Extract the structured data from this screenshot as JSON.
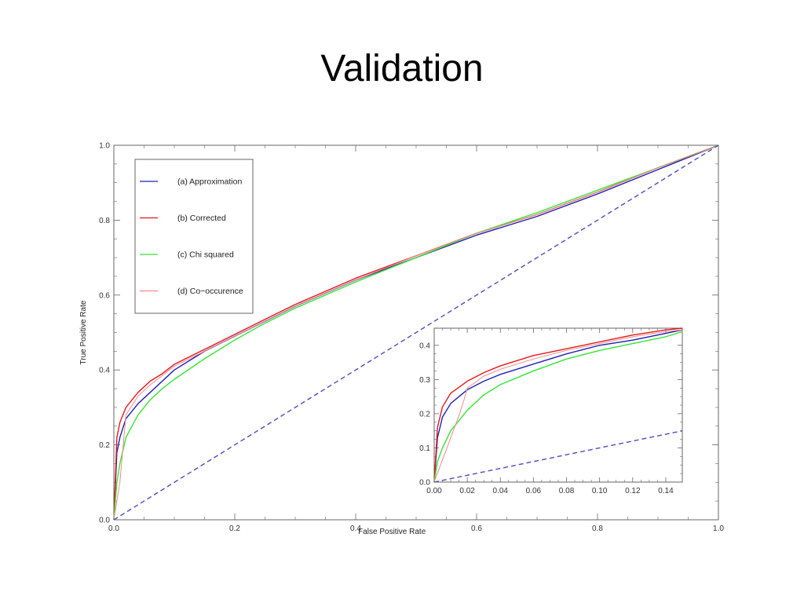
{
  "slide": {
    "title": "Validation"
  },
  "colors": {
    "approximation": "#1f1fb4",
    "corrected": "#e41a1c",
    "chi_squared": "#33e633",
    "co_occurence": "#f08c8c",
    "diagonal": "#4d4dbf",
    "frame": "#666666"
  },
  "chart_data": [
    {
      "type": "line",
      "title": "",
      "xlabel": "False Positive Rate",
      "ylabel": "True Positive Rate",
      "xlim": [
        0,
        1
      ],
      "ylim": [
        0,
        1
      ],
      "xticks": [
        0.0,
        0.2,
        0.4,
        0.6,
        0.8,
        1.0
      ],
      "yticks": [
        0.0,
        0.2,
        0.4,
        0.6,
        0.8,
        1.0
      ],
      "xtick_labels": [
        "0.0",
        "0.2",
        "0.4",
        "0.6",
        "0.8",
        "1.0"
      ],
      "ytick_labels": [
        "0.0",
        "0.2",
        "0.4",
        "0.6",
        "0.8",
        "1.0"
      ],
      "grid": false,
      "legend_position": "top-left",
      "series": [
        {
          "name": "(a) Approximation",
          "color_key": "approximation",
          "x": [
            0,
            0.005,
            0.01,
            0.02,
            0.04,
            0.06,
            0.08,
            0.1,
            0.15,
            0.2,
            0.25,
            0.3,
            0.4,
            0.5,
            0.6,
            0.7,
            0.8,
            0.9,
            1.0
          ],
          "y": [
            0,
            0.18,
            0.22,
            0.27,
            0.31,
            0.34,
            0.37,
            0.4,
            0.45,
            0.49,
            0.53,
            0.57,
            0.64,
            0.7,
            0.76,
            0.81,
            0.87,
            0.935,
            1.0
          ]
        },
        {
          "name": "(b) Corrected",
          "color_key": "corrected",
          "x": [
            0,
            0.005,
            0.01,
            0.02,
            0.04,
            0.06,
            0.08,
            0.1,
            0.15,
            0.2,
            0.25,
            0.3,
            0.4,
            0.5,
            0.6,
            0.7,
            0.8,
            0.9,
            1.0
          ],
          "y": [
            0,
            0.22,
            0.26,
            0.3,
            0.34,
            0.37,
            0.39,
            0.415,
            0.455,
            0.495,
            0.535,
            0.575,
            0.645,
            0.705,
            0.765,
            0.815,
            0.875,
            0.94,
            1.0
          ]
        },
        {
          "name": "(c) Chi squared",
          "color_key": "chi_squared",
          "x": [
            0,
            0.005,
            0.01,
            0.02,
            0.04,
            0.06,
            0.08,
            0.1,
            0.15,
            0.2,
            0.25,
            0.3,
            0.4,
            0.5,
            0.6,
            0.7,
            0.8,
            0.9,
            1.0
          ],
          "y": [
            0,
            0.1,
            0.15,
            0.22,
            0.28,
            0.32,
            0.35,
            0.375,
            0.43,
            0.48,
            0.525,
            0.565,
            0.635,
            0.7,
            0.765,
            0.82,
            0.88,
            0.94,
            1.0
          ]
        },
        {
          "name": "(d) Co−occurence",
          "color_key": "co_occurence",
          "x": [
            0,
            0.005,
            0.01,
            0.02,
            0.04,
            0.06,
            0.08,
            0.1,
            0.15,
            0.2,
            0.25,
            0.3,
            0.4,
            0.5,
            0.6,
            0.7,
            0.8,
            0.9,
            1.0
          ],
          "y": [
            0,
            0.05,
            0.1,
            0.28,
            0.33,
            0.36,
            0.385,
            0.41,
            0.45,
            0.49,
            0.53,
            0.57,
            0.64,
            0.705,
            0.765,
            0.815,
            0.875,
            0.94,
            1.0
          ]
        },
        {
          "name": "",
          "color_key": "diagonal",
          "dashed": true,
          "x": [
            0,
            1
          ],
          "y": [
            0,
            1
          ]
        }
      ]
    },
    {
      "type": "line",
      "title": "",
      "xlabel": "",
      "ylabel": "",
      "xlim": [
        0,
        0.15
      ],
      "ylim": [
        0,
        0.45
      ],
      "xticks": [
        0.0,
        0.02,
        0.04,
        0.06,
        0.08,
        0.1,
        0.12,
        0.14
      ],
      "yticks": [
        0.0,
        0.1,
        0.2,
        0.3,
        0.4
      ],
      "xtick_labels": [
        "0.00",
        "0.02",
        "0.04",
        "0.06",
        "0.08",
        "0.10",
        "0.12",
        "0.14"
      ],
      "ytick_labels": [
        "0.0",
        "0.1",
        "0.2",
        "0.3",
        "0.4"
      ],
      "grid": false,
      "inset": true,
      "series": [
        {
          "name": "(a) Approximation",
          "color_key": "approximation",
          "x": [
            0,
            0.002,
            0.005,
            0.01,
            0.02,
            0.03,
            0.04,
            0.06,
            0.08,
            0.1,
            0.12,
            0.14,
            0.15
          ],
          "y": [
            0,
            0.13,
            0.19,
            0.23,
            0.27,
            0.295,
            0.315,
            0.345,
            0.375,
            0.4,
            0.415,
            0.435,
            0.445
          ]
        },
        {
          "name": "(b) Corrected",
          "color_key": "corrected",
          "x": [
            0,
            0.002,
            0.005,
            0.01,
            0.02,
            0.03,
            0.04,
            0.06,
            0.08,
            0.1,
            0.12,
            0.14,
            0.15
          ],
          "y": [
            0,
            0.16,
            0.22,
            0.26,
            0.295,
            0.32,
            0.34,
            0.37,
            0.39,
            0.41,
            0.43,
            0.445,
            0.45
          ]
        },
        {
          "name": "(c) Chi squared",
          "color_key": "chi_squared",
          "x": [
            0,
            0.002,
            0.005,
            0.01,
            0.02,
            0.03,
            0.04,
            0.06,
            0.08,
            0.1,
            0.12,
            0.14,
            0.15
          ],
          "y": [
            0,
            0.06,
            0.1,
            0.15,
            0.21,
            0.255,
            0.285,
            0.325,
            0.36,
            0.385,
            0.405,
            0.425,
            0.44
          ]
        },
        {
          "name": "(d) Co−occurence",
          "color_key": "co_occurence",
          "x": [
            0,
            0.005,
            0.01,
            0.015,
            0.018,
            0.02,
            0.03,
            0.04,
            0.06,
            0.08,
            0.1,
            0.12,
            0.14,
            0.15
          ],
          "y": [
            0,
            0.065,
            0.13,
            0.195,
            0.24,
            0.275,
            0.31,
            0.33,
            0.36,
            0.385,
            0.405,
            0.425,
            0.44,
            0.445
          ]
        },
        {
          "name": "",
          "color_key": "diagonal",
          "dashed": true,
          "x": [
            0,
            0.15
          ],
          "y": [
            0,
            0.15
          ]
        }
      ]
    }
  ]
}
